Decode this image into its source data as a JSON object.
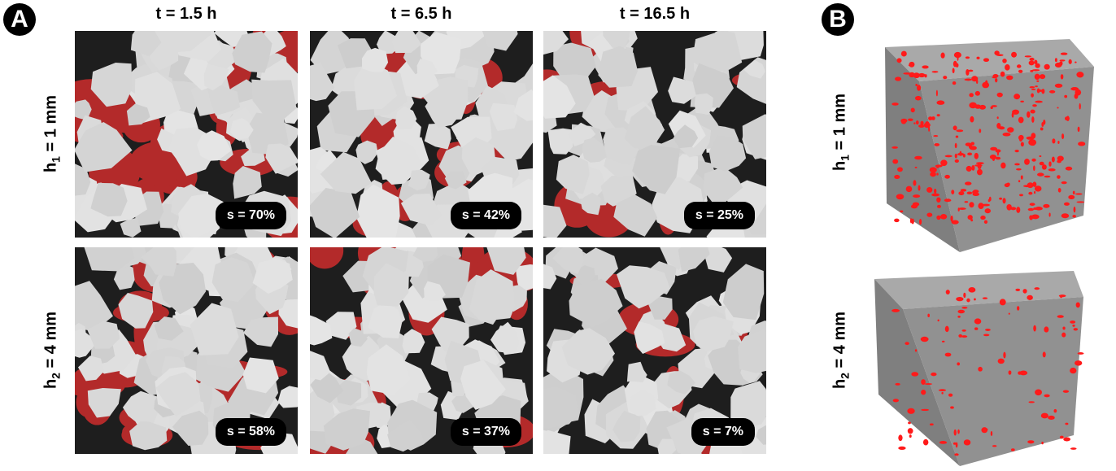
{
  "panel_a": {
    "label": "A"
  },
  "panel_b": {
    "label": "B"
  },
  "columns": [
    "t = 1.5 h",
    "t = 6.5 h",
    "t = 16.5 h"
  ],
  "rows": [
    {
      "prefix": "h",
      "sub": "1",
      "suffix": " = 1 mm"
    },
    {
      "prefix": "h",
      "sub": "2",
      "suffix": " = 4 mm"
    }
  ],
  "saturation": [
    [
      "s = 70%",
      "s = 42%",
      "s = 25%"
    ],
    [
      "s = 58%",
      "s = 37%",
      "s = 7%"
    ]
  ],
  "colors": {
    "grain": "#d9d9d9",
    "pore_air": "#1e1e1e",
    "fluid": "#b32a2a",
    "cube_grey": "#8f8f8f",
    "cube_fluid": "#ff1a1a"
  }
}
